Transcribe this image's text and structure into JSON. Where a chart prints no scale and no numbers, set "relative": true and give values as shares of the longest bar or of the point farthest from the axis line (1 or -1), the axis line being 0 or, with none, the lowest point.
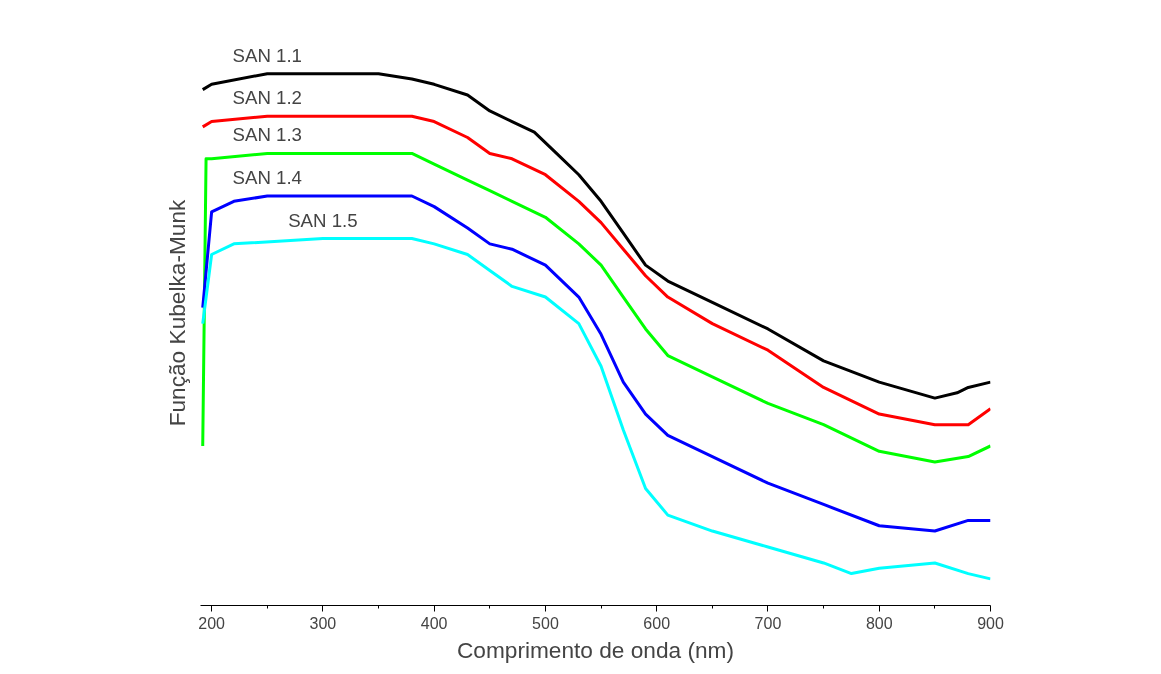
{
  "chart_data": {
    "type": "line",
    "relative": true,
    "xlabel": "Comprimento de onda (nm)",
    "ylabel": "Função Kubelka-Munk",
    "xlim": [
      190,
      900
    ],
    "xticks": [
      200,
      300,
      400,
      500,
      600,
      700,
      800,
      900
    ],
    "grid": false,
    "line_style": "solid",
    "series": [
      {
        "name": "SAN 1.1",
        "color": "#000000",
        "x": [
          192,
          200,
          250,
          300,
          350,
          380,
          400,
          430,
          450,
          470,
          490,
          510,
          530,
          550,
          570,
          590,
          610,
          650,
          700,
          750,
          800,
          850,
          870,
          880,
          900
        ],
        "values": [
          0.97,
          0.98,
          1.0,
          1.0,
          1.0,
          0.99,
          0.98,
          0.96,
          0.93,
          0.91,
          0.89,
          0.85,
          0.81,
          0.76,
          0.7,
          0.64,
          0.61,
          0.57,
          0.52,
          0.46,
          0.42,
          0.39,
          0.4,
          0.41,
          0.42
        ]
      },
      {
        "name": "SAN 1.2",
        "color": "#ff0000",
        "x": [
          192,
          200,
          250,
          300,
          380,
          400,
          430,
          450,
          470,
          500,
          530,
          550,
          570,
          590,
          610,
          650,
          700,
          750,
          800,
          850,
          880,
          900
        ],
        "values": [
          0.9,
          0.91,
          0.92,
          0.92,
          0.92,
          0.91,
          0.88,
          0.85,
          0.84,
          0.81,
          0.76,
          0.72,
          0.67,
          0.62,
          0.58,
          0.53,
          0.48,
          0.41,
          0.36,
          0.34,
          0.34,
          0.37
        ]
      },
      {
        "name": "SAN 1.3",
        "color": "#00ff00",
        "x": [
          192,
          195,
          200,
          250,
          300,
          380,
          400,
          430,
          450,
          470,
          500,
          530,
          550,
          570,
          590,
          610,
          650,
          700,
          750,
          800,
          850,
          880,
          900
        ],
        "values": [
          0.3,
          0.84,
          0.84,
          0.85,
          0.85,
          0.85,
          0.83,
          0.8,
          0.78,
          0.76,
          0.73,
          0.68,
          0.64,
          0.58,
          0.52,
          0.47,
          0.43,
          0.38,
          0.34,
          0.29,
          0.27,
          0.28,
          0.3
        ]
      },
      {
        "name": "SAN 1.4",
        "color": "#0000ff",
        "x": [
          192,
          200,
          220,
          250,
          300,
          380,
          400,
          430,
          450,
          470,
          500,
          530,
          550,
          570,
          590,
          610,
          650,
          700,
          750,
          800,
          850,
          880,
          900
        ],
        "values": [
          0.56,
          0.74,
          0.76,
          0.77,
          0.77,
          0.77,
          0.75,
          0.71,
          0.68,
          0.67,
          0.64,
          0.58,
          0.51,
          0.42,
          0.36,
          0.32,
          0.28,
          0.23,
          0.19,
          0.15,
          0.14,
          0.16,
          0.16
        ]
      },
      {
        "name": "SAN 1.5",
        "color": "#00ffff",
        "x": [
          192,
          200,
          220,
          300,
          380,
          400,
          430,
          450,
          470,
          500,
          530,
          550,
          570,
          590,
          610,
          650,
          700,
          750,
          775,
          800,
          850,
          880,
          900
        ],
        "values": [
          0.53,
          0.66,
          0.68,
          0.69,
          0.69,
          0.68,
          0.66,
          0.63,
          0.6,
          0.58,
          0.53,
          0.45,
          0.33,
          0.22,
          0.17,
          0.14,
          0.11,
          0.08,
          0.06,
          0.07,
          0.08,
          0.06,
          0.05
        ]
      }
    ]
  }
}
